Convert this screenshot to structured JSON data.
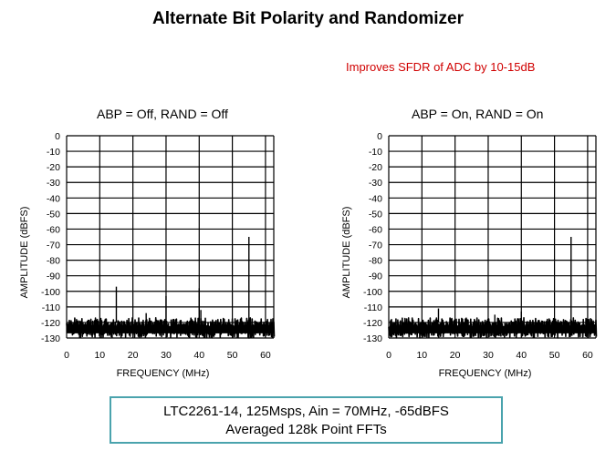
{
  "title": "Alternate Bit Polarity and Randomizer",
  "subtitle": "Improves SFDR of ADC by 10-15dB",
  "info_box": {
    "line1": "LTC2261-14, 125Msps, Ain = 70MHz, -65dBFS",
    "line2": "Averaged 128k Point FFTs"
  },
  "chart_data": [
    {
      "type": "line",
      "title": "ABP = Off, RAND = Off",
      "xlabel": "FREQUENCY (MHz)",
      "ylabel": "AMPLITUDE (dBFS)",
      "xlim": [
        0,
        62.5
      ],
      "ylim": [
        -130,
        0
      ],
      "xticks": [
        0,
        10,
        20,
        30,
        40,
        50,
        60
      ],
      "yticks": [
        0,
        -10,
        -20,
        -30,
        -40,
        -50,
        -60,
        -70,
        -80,
        -90,
        -100,
        -110,
        -120,
        -130
      ],
      "grid": true,
      "noise_floor": -120,
      "spurs": [
        {
          "freq": 15,
          "level": -97
        },
        {
          "freq": 24,
          "level": -114
        },
        {
          "freq": 30,
          "level": -103
        },
        {
          "freq": 40,
          "level": -98
        },
        {
          "freq": 40.5,
          "level": -112
        },
        {
          "freq": 55,
          "level": -65
        }
      ]
    },
    {
      "type": "line",
      "title": "ABP = On, RAND = On",
      "xlabel": "FREQUENCY (MHz)",
      "ylabel": "AMPLITUDE (dBFS)",
      "xlim": [
        0,
        62.5
      ],
      "ylim": [
        -130,
        0
      ],
      "xticks": [
        0,
        10,
        20,
        30,
        40,
        50,
        60
      ],
      "yticks": [
        0,
        -10,
        -20,
        -30,
        -40,
        -50,
        -60,
        -70,
        -80,
        -90,
        -100,
        -110,
        -120,
        -130
      ],
      "grid": true,
      "noise_floor": -120,
      "spurs": [
        {
          "freq": 15,
          "level": -111
        },
        {
          "freq": 32,
          "level": -115
        },
        {
          "freq": 40,
          "level": -113
        },
        {
          "freq": 55,
          "level": -65
        }
      ]
    }
  ]
}
